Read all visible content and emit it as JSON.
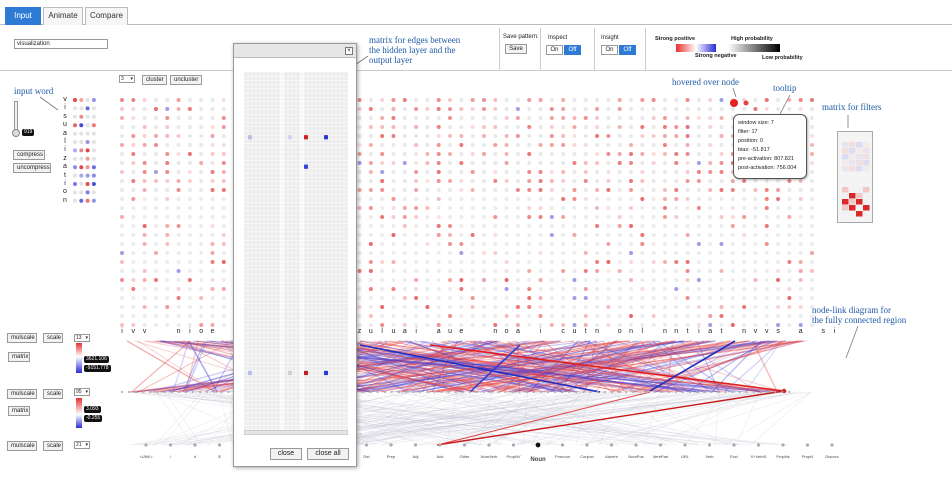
{
  "tabs": [
    {
      "label": "Input",
      "active": true
    },
    {
      "label": "Animate",
      "active": false
    },
    {
      "label": "Compare",
      "active": false
    }
  ],
  "toolbar": {
    "text_value": "visualization",
    "save_pattern_label": "Save pattern:",
    "save_button": "Save",
    "inspect_label": "Inspect",
    "insight_label": "Insight",
    "on": "On",
    "off": "Off",
    "legend": {
      "strong_positive": "Strong positive",
      "strong_negative": "Strong negative",
      "high_probability": "High probability",
      "low_probability": "Low probability",
      "positive_color": "#e53030",
      "negative_color": "#2b2bd6"
    }
  },
  "cluster": {
    "select_value": "3",
    "cluster_button": "cluster",
    "uncluster_button": "uncluster"
  },
  "left": {
    "slider_value": "919",
    "compress_button": "compress",
    "uncompress_button": "uncompress",
    "input_word": "visualization"
  },
  "sections": [
    {
      "mulscale": "mulscale",
      "scale": "scale",
      "select": "13",
      "matrix": "matrix",
      "max": "3621.106",
      "min": "-9151.778"
    },
    {
      "mulscale": "mulscale",
      "scale": "scale",
      "select": "95",
      "matrix": "matrix",
      "max": "3.093",
      "min": "-0.255"
    },
    {
      "mulscale": "mulscale",
      "scale": "scale",
      "select": "21"
    }
  ],
  "annotations": {
    "input_word": "input word",
    "matrix_edges": "matrix for edges between\nthe hidden layer and the\noutput layer",
    "hovered": "hovered over node",
    "tooltip": "tooltip",
    "matrix_filters": "matrix for filters",
    "node_link": "node-link diagram for\nthe fully connected region"
  },
  "tooltip": [
    "window size: 7",
    "filter: 17",
    "position: 0",
    "bias: -51.817",
    "pre-activation: 807.821",
    "post-activation: 756.004"
  ],
  "letters_row": [
    "i",
    "v",
    "v",
    "",
    "",
    "n",
    "i",
    "o",
    "e",
    "",
    "t",
    "",
    "",
    "",
    "",
    "",
    "",
    "",
    "",
    "",
    "",
    "z",
    "u",
    "l",
    "u",
    "a",
    "i",
    "",
    "a",
    "u",
    "e",
    "",
    "",
    "n",
    "o",
    "a",
    "",
    "i",
    "",
    "c",
    "u",
    "t",
    "n",
    "",
    "o",
    "n",
    "l",
    "",
    "n",
    "n",
    "t",
    "i",
    "a",
    "t",
    "",
    "n",
    "v",
    "v",
    "s",
    "",
    "a",
    "",
    "s",
    "i"
  ],
  "output_labels": [
    "<UNK>",
    "!",
    "#",
    "$",
    "CoorConj",
    "Interj",
    "Hashtag",
    "Numeral",
    "ConConj",
    "Det",
    "Prep",
    "Adj",
    "Adv",
    "Other",
    "NumVerb",
    "PropNV",
    "Noun",
    "Pronoun",
    "Conjnct",
    "Adverb",
    "NomPos",
    "VerbPart",
    "URL",
    "Verb",
    "Excl",
    "X+VerbS",
    "PropNs",
    "PropN",
    "Discors"
  ],
  "popup": {
    "close": "close",
    "close_all": "close all",
    "x": "×"
  }
}
